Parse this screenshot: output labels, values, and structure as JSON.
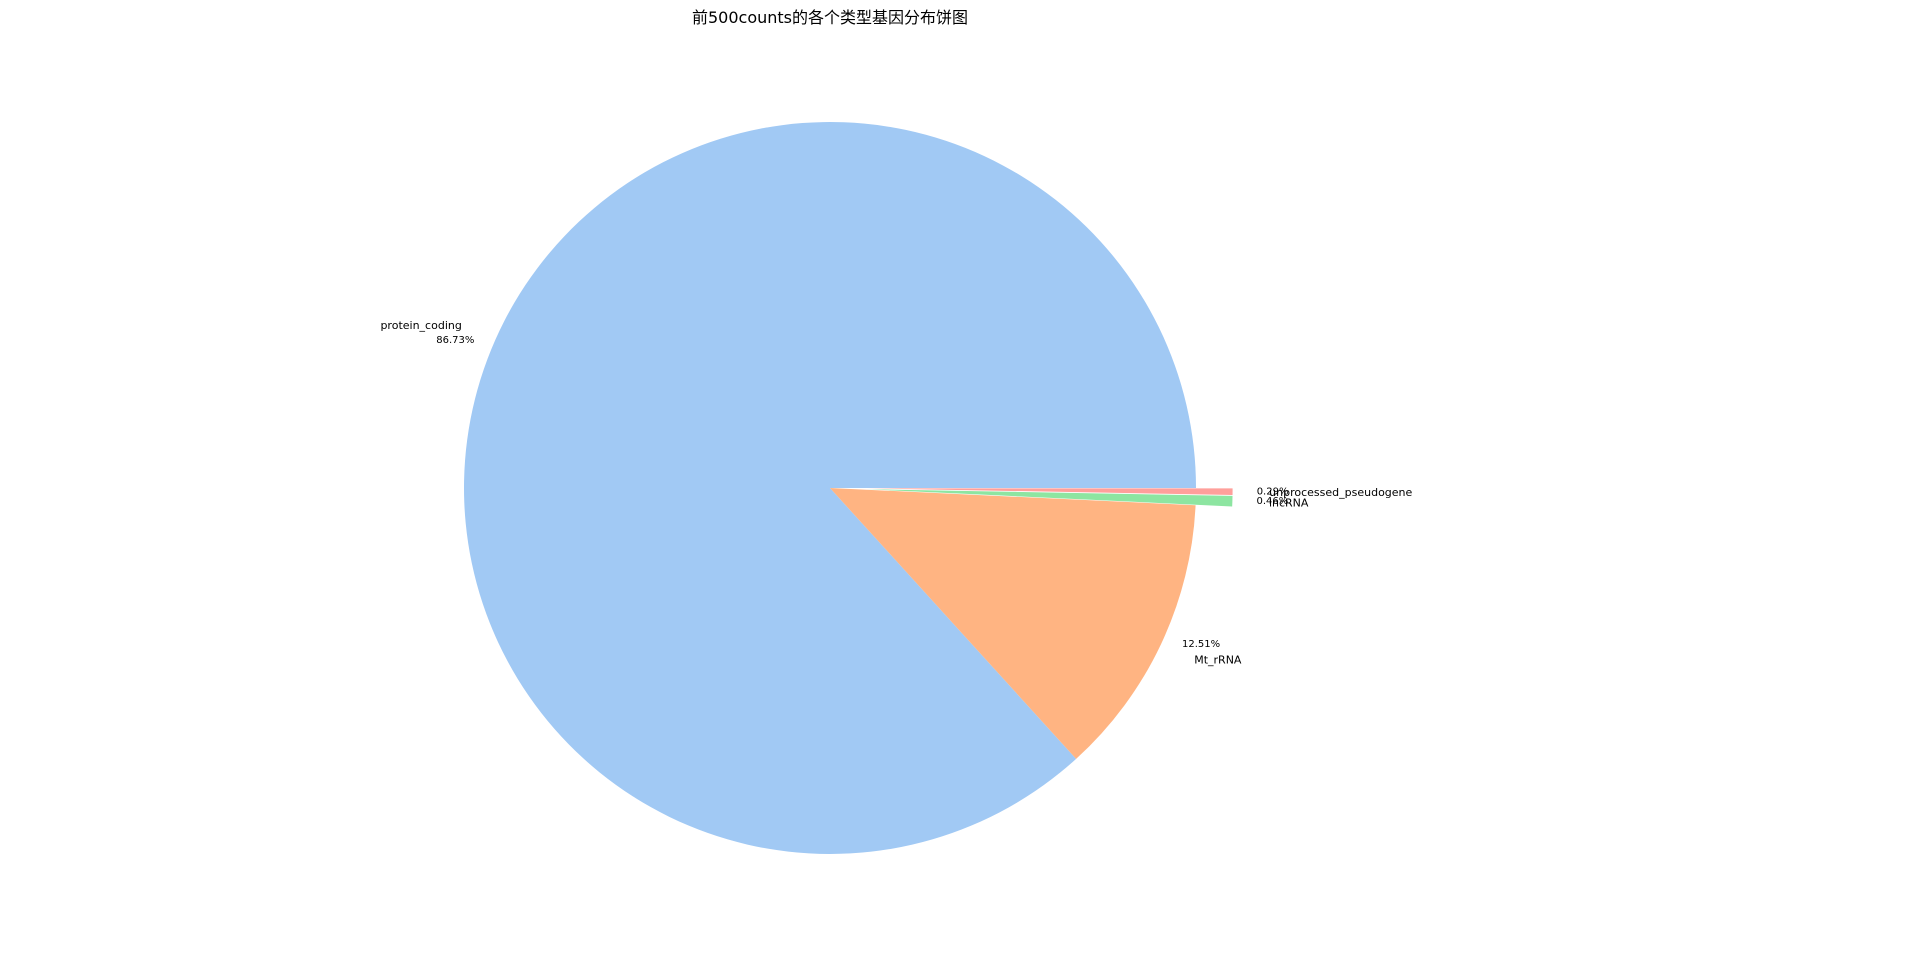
{
  "chart_data": {
    "type": "pie",
    "title": "前500counts的各个类型基因分布饼图",
    "slices": [
      {
        "label": "protein_coding",
        "percent": 86.73,
        "percent_label": "86.73%",
        "color": "#a1c9f4"
      },
      {
        "label": "Mt_rRNA",
        "percent": 12.51,
        "percent_label": "12.51%",
        "color": "#ffb482"
      },
      {
        "label": "lncRNA",
        "percent": 0.46,
        "percent_label": "0.46%",
        "color": "#8de5a1"
      },
      {
        "label": "unprocessed_pseudogene",
        "percent": 0.29,
        "percent_label": "0.29%",
        "color": "#ff9f9b"
      }
    ],
    "start_angle_deg": 0,
    "direction": "counterclockwise",
    "exploded": [
      "lncRNA",
      "unprocessed_pseudogene"
    ]
  }
}
